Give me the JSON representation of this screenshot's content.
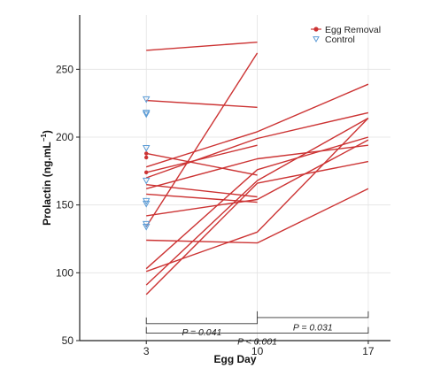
{
  "chart_data": {
    "type": "line",
    "xlabel": "Egg Day",
    "ylabel": "Prolactin (ng.mL",
    "ylabel_sup": "−1",
    "ylabel_close": ")",
    "x_ticks": [
      3,
      10,
      17
    ],
    "y_ticks": [
      50,
      100,
      150,
      200,
      250
    ],
    "xlim": [
      -1.2,
      18.4
    ],
    "ylim": [
      50,
      290
    ],
    "grid": true,
    "legend_position": "top-right",
    "colors": {
      "egg_removal": "#cc3333",
      "control": "#5b9bd5",
      "axis": "#222222"
    },
    "legend": [
      {
        "label": "Egg Removal",
        "marker": "circle",
        "color": "#cc3333"
      },
      {
        "label": "Control",
        "marker": "triangle-down",
        "color": "#5b9bd5"
      }
    ],
    "series": [
      {
        "x": [
          3,
          10
        ],
        "y": [
          264,
          270
        ]
      },
      {
        "x": [
          3,
          10
        ],
        "y": [
          227,
          222
        ]
      },
      {
        "x": [
          3,
          10,
          17
        ],
        "y": [
          178,
          204,
          239
        ]
      },
      {
        "x": [
          3,
          10
        ],
        "y": [
          188,
          172
        ]
      },
      {
        "x": [
          3,
          10,
          17
        ],
        "y": [
          170,
          199,
          218
        ]
      },
      {
        "x": [
          3,
          10,
          17
        ],
        "y": [
          162,
          184,
          194
        ]
      },
      {
        "x": [
          3,
          10
        ],
        "y": [
          165,
          156
        ]
      },
      {
        "x": [
          3,
          10
        ],
        "y": [
          158,
          152
        ]
      },
      {
        "x": [
          3,
          10,
          17
        ],
        "y": [
          142,
          154,
          198
        ]
      },
      {
        "x": [
          3,
          10,
          17
        ],
        "y": [
          124,
          122,
          162
        ]
      },
      {
        "x": [
          3,
          10,
          17
        ],
        "y": [
          103,
          176,
          200
        ]
      },
      {
        "x": [
          3,
          10,
          17
        ],
        "y": [
          101,
          130,
          214
        ]
      },
      {
        "x": [
          3,
          10,
          17
        ],
        "y": [
          91,
          168,
          214
        ]
      },
      {
        "x": [
          3,
          10,
          17
        ],
        "y": [
          84,
          166,
          182
        ]
      },
      {
        "x": [
          3,
          10
        ],
        "y": [
          134,
          262
        ]
      },
      {
        "x": [
          3,
          10
        ],
        "y": [
          174,
          194
        ]
      }
    ],
    "control_points": [
      {
        "x": 3,
        "y": 228
      },
      {
        "x": 3,
        "y": 218
      },
      {
        "x": 3,
        "y": 217
      },
      {
        "x": 3,
        "y": 192
      },
      {
        "x": 3,
        "y": 168
      },
      {
        "x": 3,
        "y": 153
      },
      {
        "x": 3,
        "y": 151
      },
      {
        "x": 3,
        "y": 136
      },
      {
        "x": 3,
        "y": 134
      }
    ],
    "annotations": [
      {
        "x_from": 3,
        "x_to": 10,
        "bracket_y": 62.5,
        "label": "P = 0.041",
        "label_y": 54
      },
      {
        "x_from": 10,
        "x_to": 17,
        "bracket_y": 67,
        "label": "P = 0.031",
        "label_y": 57.5
      },
      {
        "x_from": 3,
        "x_to": 17,
        "bracket_y": 55.5,
        "label": "P < 0.001",
        "label_y": 47
      }
    ]
  }
}
